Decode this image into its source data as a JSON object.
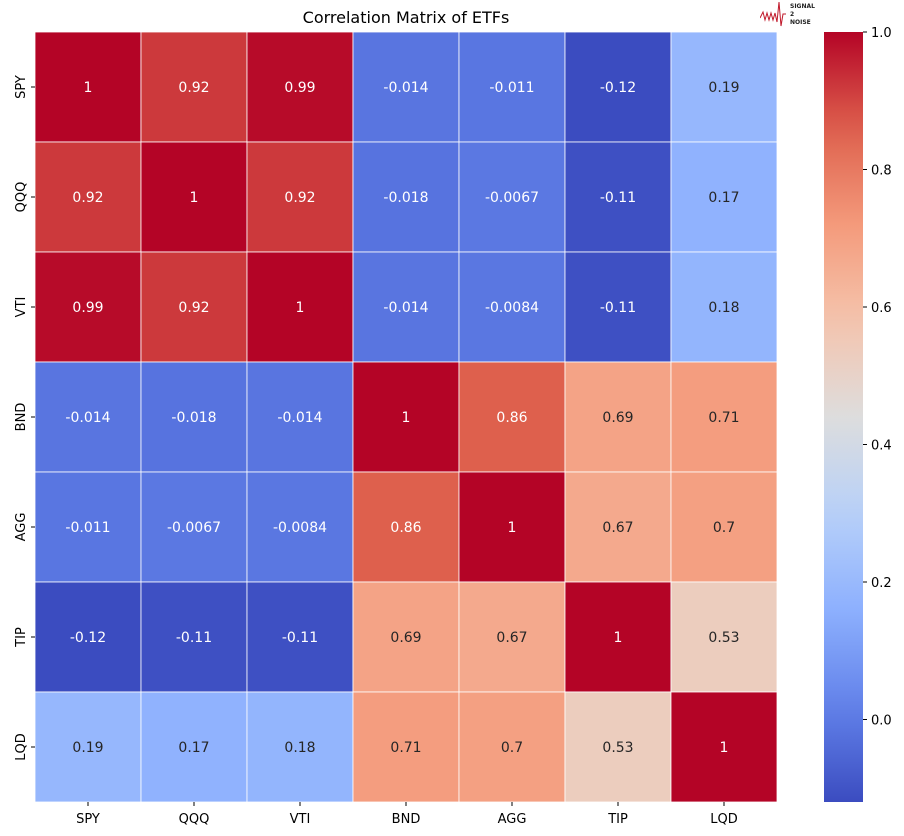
{
  "chart_data": {
    "type": "heatmap",
    "title": "Correlation Matrix of ETFs",
    "x_labels": [
      "SPY",
      "QQQ",
      "VTI",
      "BND",
      "AGG",
      "TIP",
      "LQD"
    ],
    "y_labels": [
      "SPY",
      "QQQ",
      "VTI",
      "BND",
      "AGG",
      "TIP",
      "LQD"
    ],
    "values": [
      [
        1,
        0.92,
        0.99,
        -0.014,
        -0.011,
        -0.12,
        0.19
      ],
      [
        0.92,
        1,
        0.92,
        -0.018,
        -0.0067,
        -0.11,
        0.17
      ],
      [
        0.99,
        0.92,
        1,
        -0.014,
        -0.0084,
        -0.11,
        0.18
      ],
      [
        -0.014,
        -0.018,
        -0.014,
        1,
        0.86,
        0.69,
        0.71
      ],
      [
        -0.011,
        -0.0067,
        -0.0084,
        0.86,
        1,
        0.67,
        0.7
      ],
      [
        -0.12,
        -0.11,
        -0.11,
        0.69,
        0.67,
        1,
        0.53
      ],
      [
        0.19,
        0.17,
        0.18,
        0.71,
        0.7,
        0.53,
        1
      ]
    ],
    "colormap": "coolwarm",
    "vmin": -0.12,
    "vmax": 1.0,
    "annotated": true,
    "colorbar": {
      "ticks": [
        0.0,
        0.2,
        0.4,
        0.6,
        0.8,
        1.0
      ],
      "tick_labels": [
        "0.0",
        "0.2",
        "0.4",
        "0.6",
        "0.8",
        "1.0"
      ]
    }
  },
  "logo": {
    "text": [
      "SIGNAL",
      "2",
      "NOISE"
    ],
    "color": "#c0182a"
  }
}
